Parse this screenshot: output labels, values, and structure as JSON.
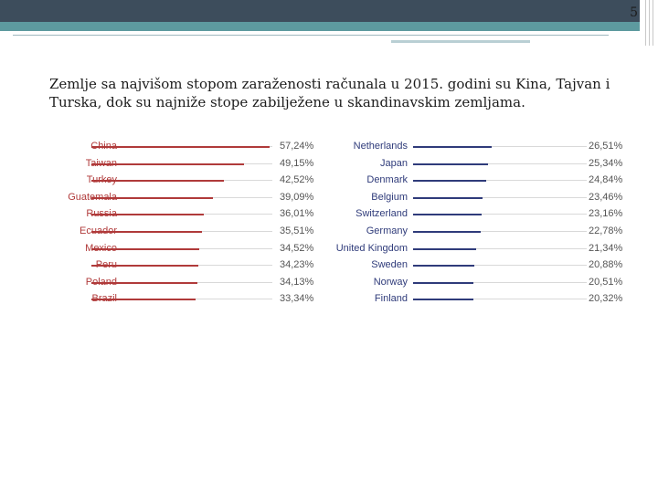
{
  "page": {
    "number": "5"
  },
  "intro_text": "Zemlje sa najvišom stopom zaraženosti računala u 2015. godini su Kina, Tajvan i Turska, dok su najniže stope zabilježene u skandinavskim zemljama.",
  "colors": {
    "highest_bar": "#b03a3a",
    "lowest_bar": "#2f3b7a",
    "track": "#d9d9d9",
    "value_text": "#555555"
  },
  "chart_data": [
    {
      "type": "bar",
      "title": "",
      "categories": [
        "China",
        "Taiwan",
        "Turkey",
        "Guatemala",
        "Russia",
        "Ecuador",
        "Mexico",
        "Peru",
        "Poland",
        "Brazil"
      ],
      "values": [
        57.24,
        49.15,
        42.52,
        39.09,
        36.01,
        35.51,
        34.52,
        34.23,
        34.13,
        33.34
      ],
      "value_labels": [
        "57,24%",
        "49,15%",
        "42,52%",
        "39,09%",
        "36,01%",
        "35,51%",
        "34,52%",
        "34,23%",
        "34,13%",
        "33,34%"
      ],
      "xlabel": "",
      "ylabel": "",
      "xlim": [
        0,
        100
      ],
      "grid": false,
      "legend": "none"
    },
    {
      "type": "bar",
      "title": "",
      "categories": [
        "Netherlands",
        "Japan",
        "Denmark",
        "Belgium",
        "Switzerland",
        "Germany",
        "United Kingdom",
        "Sweden",
        "Norway",
        "Finland"
      ],
      "values": [
        26.51,
        25.34,
        24.84,
        23.46,
        23.16,
        22.78,
        21.34,
        20.88,
        20.51,
        20.32
      ],
      "value_labels": [
        "26,51%",
        "25,34%",
        "24,84%",
        "23,46%",
        "23,16%",
        "22,78%",
        "21,34%",
        "20,88%",
        "20,51%",
        "20,32%"
      ],
      "xlabel": "",
      "ylabel": "",
      "xlim": [
        0,
        100
      ],
      "grid": false,
      "legend": "none"
    }
  ]
}
